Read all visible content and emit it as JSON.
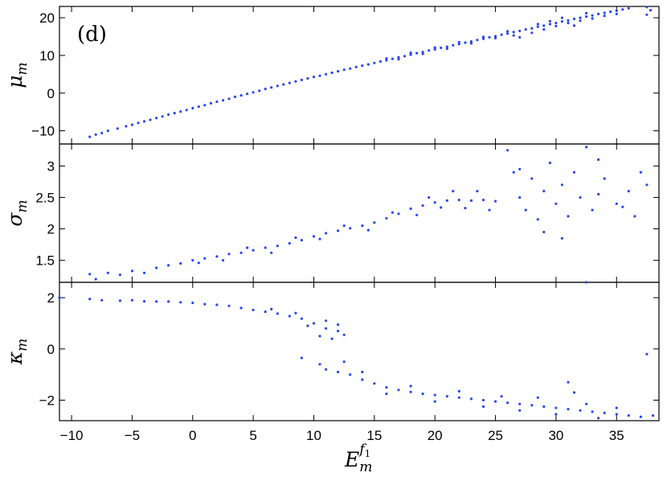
{
  "panel_label": "(d)",
  "chart_data": {
    "type": "scatter",
    "xlabel": {
      "main": "E",
      "sub": "m",
      "sup": "f",
      "sup_sub": "1"
    },
    "xlim": [
      -11,
      38.5
    ],
    "xticks": [
      -10,
      -5,
      0,
      5,
      10,
      15,
      20,
      25,
      30,
      35
    ],
    "xtick_labels": [
      "−10",
      "−5",
      "0",
      "5",
      "10",
      "15",
      "20",
      "25",
      "30",
      "35"
    ],
    "grid": false,
    "color": "#2b47f0",
    "panels": [
      {
        "id": "mu",
        "ylabel": {
          "main": "μ",
          "sub": "m"
        },
        "ylim": [
          -13.5,
          23
        ],
        "yticks": [
          -10,
          0,
          10,
          20
        ],
        "ytick_labels": [
          "−10",
          "0",
          "10",
          "20"
        ],
        "points": [
          [
            -8.5,
            -11.6
          ],
          [
            -8.0,
            -11.0
          ],
          [
            -7.5,
            -10.6
          ],
          [
            -7.0,
            -10.0
          ],
          [
            -6.2,
            -9.4
          ],
          [
            -5.5,
            -8.8
          ],
          [
            -5.0,
            -8.4
          ],
          [
            -4.5,
            -7.9
          ],
          [
            -4.0,
            -7.5
          ],
          [
            -3.5,
            -7.1
          ],
          [
            -3.0,
            -6.6
          ],
          [
            -2.5,
            -6.2
          ],
          [
            -2.0,
            -5.7
          ],
          [
            -1.5,
            -5.3
          ],
          [
            -1.0,
            -4.9
          ],
          [
            -0.5,
            -4.5
          ],
          [
            0.0,
            -4.0
          ],
          [
            0.5,
            -3.6
          ],
          [
            1.0,
            -3.2
          ],
          [
            1.5,
            -2.7
          ],
          [
            2.0,
            -2.3
          ],
          [
            2.5,
            -1.9
          ],
          [
            3.0,
            -1.5
          ],
          [
            3.5,
            -1.0
          ],
          [
            4.0,
            -0.6
          ],
          [
            4.5,
            -0.2
          ],
          [
            5.0,
            0.2
          ],
          [
            5.5,
            0.6
          ],
          [
            6.0,
            1.1
          ],
          [
            6.5,
            1.5
          ],
          [
            7.0,
            1.9
          ],
          [
            7.5,
            2.3
          ],
          [
            8.0,
            2.7
          ],
          [
            8.5,
            3.1
          ],
          [
            9.0,
            3.5
          ],
          [
            9.5,
            3.9
          ],
          [
            10.0,
            4.3
          ],
          [
            10.5,
            4.6
          ],
          [
            11.0,
            5.0
          ],
          [
            11.5,
            5.4
          ],
          [
            12.0,
            5.8
          ],
          [
            12.5,
            6.2
          ],
          [
            13.0,
            6.5
          ],
          [
            13.5,
            6.9
          ],
          [
            14.0,
            7.3
          ],
          [
            14.5,
            7.6
          ],
          [
            15.0,
            8.0
          ],
          [
            15.5,
            8.4
          ],
          [
            16.0,
            8.7
          ],
          [
            16.5,
            9.1
          ],
          [
            17.0,
            9.5
          ],
          [
            17.5,
            9.8
          ],
          [
            18.0,
            10.2
          ],
          [
            18.5,
            10.6
          ],
          [
            19.0,
            10.9
          ],
          [
            19.5,
            11.3
          ],
          [
            20.0,
            11.6
          ],
          [
            20.5,
            12.0
          ],
          [
            21.0,
            12.3
          ],
          [
            21.5,
            12.7
          ],
          [
            22.0,
            13.0
          ],
          [
            22.5,
            13.4
          ],
          [
            23.0,
            13.7
          ],
          [
            23.5,
            14.1
          ],
          [
            24.0,
            14.4
          ],
          [
            24.5,
            14.8
          ],
          [
            25.0,
            15.1
          ],
          [
            25.5,
            15.5
          ],
          [
            26.0,
            15.8
          ],
          [
            26.5,
            16.2
          ],
          [
            27.0,
            16.5
          ],
          [
            27.5,
            16.9
          ],
          [
            28.0,
            17.2
          ],
          [
            28.5,
            17.6
          ],
          [
            29.0,
            17.9
          ],
          [
            29.5,
            18.3
          ],
          [
            30.0,
            18.6
          ],
          [
            30.5,
            19.0
          ],
          [
            31.0,
            19.3
          ],
          [
            31.5,
            19.7
          ],
          [
            32.0,
            20.0
          ],
          [
            32.5,
            20.3
          ],
          [
            33.0,
            20.6
          ],
          [
            33.5,
            21.0
          ],
          [
            34.0,
            21.3
          ],
          [
            34.5,
            21.6
          ],
          [
            35.0,
            21.9
          ],
          [
            35.5,
            22.2
          ],
          [
            36.0,
            22.5
          ],
          [
            37.5,
            22.8
          ],
          [
            16.0,
            9.2
          ],
          [
            17.0,
            9.0
          ],
          [
            18.0,
            10.7
          ],
          [
            19.0,
            10.4
          ],
          [
            20.0,
            12.1
          ],
          [
            21.0,
            11.8
          ],
          [
            22.0,
            13.5
          ],
          [
            23.0,
            13.2
          ],
          [
            24.0,
            14.9
          ],
          [
            25.0,
            14.6
          ],
          [
            26.0,
            16.4
          ],
          [
            26.5,
            15.3
          ],
          [
            27.0,
            14.8
          ],
          [
            28.0,
            16.0
          ],
          [
            28.5,
            18.3
          ],
          [
            29.0,
            16.9
          ],
          [
            29.5,
            19.1
          ],
          [
            30.0,
            17.8
          ],
          [
            30.5,
            20.0
          ],
          [
            31.0,
            18.6
          ],
          [
            31.5,
            17.9
          ],
          [
            32.0,
            19.2
          ],
          [
            32.5,
            21.2
          ],
          [
            33.0,
            19.8
          ],
          [
            34.0,
            20.5
          ],
          [
            35.0,
            21.0
          ],
          [
            37.8,
            22.0
          ],
          [
            37.5,
            20.8
          ]
        ]
      },
      {
        "id": "sigma",
        "ylabel": {
          "main": "σ",
          "sub": "m"
        },
        "ylim": [
          1.15,
          3.35
        ],
        "yticks": [
          1.5,
          2,
          2.5,
          3
        ],
        "ytick_labels": [
          "1.5",
          "2",
          "2.5",
          "3"
        ],
        "points": [
          [
            -8.5,
            1.28
          ],
          [
            -8.0,
            1.2
          ],
          [
            -7.0,
            1.3
          ],
          [
            -6.0,
            1.27
          ],
          [
            -5.0,
            1.33
          ],
          [
            -4.0,
            1.3
          ],
          [
            -3.0,
            1.38
          ],
          [
            -2.0,
            1.42
          ],
          [
            -1.0,
            1.45
          ],
          [
            0.0,
            1.5
          ],
          [
            0.5,
            1.46
          ],
          [
            1.0,
            1.53
          ],
          [
            2.0,
            1.56
          ],
          [
            3.0,
            1.6
          ],
          [
            4.0,
            1.62
          ],
          [
            5.0,
            1.66
          ],
          [
            6.0,
            1.7
          ],
          [
            7.0,
            1.73
          ],
          [
            8.0,
            1.77
          ],
          [
            9.0,
            1.82
          ],
          [
            10.0,
            1.88
          ],
          [
            11.0,
            1.93
          ],
          [
            12.0,
            1.97
          ],
          [
            13.0,
            2.01
          ],
          [
            14.0,
            2.05
          ],
          [
            15.0,
            2.1
          ],
          [
            16.0,
            2.17
          ],
          [
            17.0,
            2.24
          ],
          [
            18.0,
            2.32
          ],
          [
            19.0,
            2.37
          ],
          [
            20.0,
            2.42
          ],
          [
            21.0,
            2.45
          ],
          [
            22.0,
            2.46
          ],
          [
            23.0,
            2.45
          ],
          [
            24.0,
            2.46
          ],
          [
            25.0,
            2.44
          ],
          [
            2.5,
            1.5
          ],
          [
            4.5,
            1.7
          ],
          [
            6.5,
            1.62
          ],
          [
            8.5,
            1.86
          ],
          [
            10.5,
            1.84
          ],
          [
            12.5,
            2.05
          ],
          [
            14.5,
            1.98
          ],
          [
            16.5,
            2.26
          ],
          [
            18.5,
            2.22
          ],
          [
            19.5,
            2.5
          ],
          [
            20.5,
            2.34
          ],
          [
            21.5,
            2.6
          ],
          [
            22.5,
            2.33
          ],
          [
            23.5,
            2.6
          ],
          [
            24.5,
            2.3
          ],
          [
            26.0,
            3.25
          ],
          [
            26.5,
            2.9
          ],
          [
            27.0,
            2.5
          ],
          [
            27.5,
            2.3
          ],
          [
            28.0,
            2.8
          ],
          [
            28.5,
            2.15
          ],
          [
            29.0,
            2.6
          ],
          [
            29.5,
            3.05
          ],
          [
            30.0,
            2.4
          ],
          [
            30.5,
            2.7
          ],
          [
            31.0,
            2.2
          ],
          [
            31.5,
            2.9
          ],
          [
            32.0,
            2.5
          ],
          [
            32.5,
            3.3
          ],
          [
            33.0,
            2.3
          ],
          [
            33.5,
            2.55
          ],
          [
            34.0,
            2.8
          ],
          [
            35.0,
            2.4
          ],
          [
            36.0,
            2.6
          ],
          [
            36.5,
            2.2
          ],
          [
            37.0,
            2.9
          ],
          [
            37.5,
            2.7
          ],
          [
            27.0,
            2.95
          ],
          [
            29.0,
            1.95
          ],
          [
            30.5,
            1.85
          ],
          [
            33.5,
            3.1
          ],
          [
            35.5,
            2.35
          ]
        ]
      },
      {
        "id": "kappa",
        "ylabel": {
          "main": "κ",
          "sub": "m"
        },
        "ylim": [
          -2.8,
          2.6
        ],
        "yticks": [
          -2,
          0,
          2
        ],
        "ytick_labels": [
          "−2",
          "0",
          "2"
        ],
        "points": [
          [
            -11.0,
            2.0
          ],
          [
            -8.5,
            1.95
          ],
          [
            -7.5,
            1.9
          ],
          [
            -6.0,
            1.88
          ],
          [
            -5.0,
            1.9
          ],
          [
            -4.0,
            1.86
          ],
          [
            -3.0,
            1.85
          ],
          [
            -2.0,
            1.85
          ],
          [
            -1.0,
            1.82
          ],
          [
            0.0,
            1.8
          ],
          [
            1.0,
            1.75
          ],
          [
            2.0,
            1.72
          ],
          [
            3.0,
            1.68
          ],
          [
            4.0,
            1.6
          ],
          [
            5.0,
            1.52
          ],
          [
            6.0,
            1.45
          ],
          [
            7.0,
            1.38
          ],
          [
            8.0,
            1.28
          ],
          [
            9.0,
            1.18
          ],
          [
            10.0,
            1.0
          ],
          [
            11.0,
            0.8
          ],
          [
            12.0,
            0.7
          ],
          [
            12.5,
            0.55
          ],
          [
            11.5,
            0.4
          ],
          [
            10.5,
            0.5
          ],
          [
            12.0,
            0.95
          ],
          [
            9.5,
            0.9
          ],
          [
            11.0,
            1.1
          ],
          [
            8.5,
            1.4
          ],
          [
            6.5,
            1.55
          ],
          [
            9.0,
            -0.35
          ],
          [
            10.5,
            -0.6
          ],
          [
            11.0,
            -0.8
          ],
          [
            12.0,
            -0.9
          ],
          [
            12.5,
            -0.5
          ],
          [
            13.0,
            -1.0
          ],
          [
            14.0,
            -1.2
          ],
          [
            15.0,
            -1.35
          ],
          [
            16.0,
            -1.5
          ],
          [
            17.0,
            -1.6
          ],
          [
            18.0,
            -1.68
          ],
          [
            19.0,
            -1.75
          ],
          [
            20.0,
            -1.8
          ],
          [
            21.0,
            -1.85
          ],
          [
            22.0,
            -1.9
          ],
          [
            23.0,
            -1.95
          ],
          [
            24.0,
            -2.0
          ],
          [
            25.0,
            -2.05
          ],
          [
            26.0,
            -2.1
          ],
          [
            27.0,
            -2.15
          ],
          [
            28.0,
            -2.2
          ],
          [
            29.0,
            -2.25
          ],
          [
            30.0,
            -2.3
          ],
          [
            31.0,
            -2.35
          ],
          [
            32.0,
            -2.4
          ],
          [
            33.0,
            -2.45
          ],
          [
            34.0,
            -2.5
          ],
          [
            35.0,
            -2.55
          ],
          [
            36.0,
            -2.6
          ],
          [
            37.0,
            -2.65
          ],
          [
            38.0,
            -2.6
          ],
          [
            14.0,
            -0.9
          ],
          [
            16.0,
            -1.75
          ],
          [
            18.0,
            -1.45
          ],
          [
            20.0,
            -2.05
          ],
          [
            22.0,
            -1.65
          ],
          [
            24.0,
            -2.25
          ],
          [
            25.5,
            -1.85
          ],
          [
            27.0,
            -2.4
          ],
          [
            28.5,
            -1.9
          ],
          [
            30.0,
            -2.55
          ],
          [
            31.0,
            -1.3
          ],
          [
            31.5,
            -1.7
          ],
          [
            32.5,
            -2.15
          ],
          [
            33.5,
            -2.7
          ],
          [
            35.0,
            -2.3
          ],
          [
            37.5,
            -0.2
          ],
          [
            32.5,
            2.6
          ]
        ]
      }
    ]
  }
}
